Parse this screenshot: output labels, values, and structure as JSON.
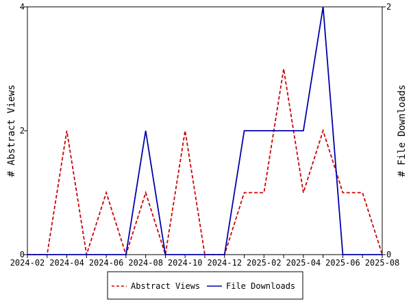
{
  "chart_data": {
    "type": "line",
    "x": [
      "2024-02",
      "2024-03",
      "2024-04",
      "2024-05",
      "2024-06",
      "2024-07",
      "2024-08",
      "2024-09",
      "2024-10",
      "2024-11",
      "2024-12",
      "2025-01",
      "2025-02",
      "2025-03",
      "2025-04",
      "2025-05",
      "2025-06",
      "2025-07",
      "2025-08"
    ],
    "x_tick_labels": [
      "2024-02",
      "2024-04",
      "2024-06",
      "2024-08",
      "2024-10",
      "2024-12",
      "2025-02",
      "2025-04",
      "2025-06",
      "2025-08"
    ],
    "series": [
      {
        "name": "Abstract Views",
        "axis": "left",
        "color": "#cc0000",
        "style": "dashed",
        "values": [
          0,
          0,
          2,
          0,
          1,
          0,
          1,
          0,
          2,
          0,
          0,
          1,
          1,
          3,
          1,
          2,
          1,
          1,
          0
        ]
      },
      {
        "name": "File Downloads",
        "axis": "right",
        "color": "#0000aa",
        "style": "solid",
        "values": [
          0,
          0,
          0,
          0,
          0,
          0,
          1,
          0,
          0,
          0,
          0,
          1,
          1,
          1,
          1,
          2,
          0,
          0,
          0
        ]
      }
    ],
    "ylabel_left": "# Abstract Views",
    "ylabel_right": "# File Downloads",
    "ylim_left": [
      0,
      4
    ],
    "ylim_right": [
      0,
      2
    ],
    "y_ticks_left": [
      "0",
      "2",
      "4"
    ],
    "y_ticks_right": [
      "0",
      "2"
    ],
    "legend_placement": "bottom"
  }
}
